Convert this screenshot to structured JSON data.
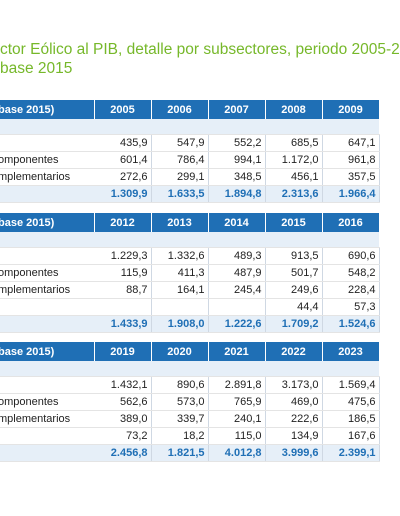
{
  "title": {
    "line1": "ctor Eólico al PIB, detalle por subsectores, periodo 2005-2",
    "line2": "base 2015"
  },
  "blocks": [
    {
      "header_label": "base 2015)",
      "years": [
        "2005",
        "2006",
        "2007",
        "2008",
        "2009"
      ],
      "rows": [
        {
          "label": "",
          "values": [
            "435,9",
            "547,9",
            "552,2",
            "685,5",
            "647,1"
          ]
        },
        {
          "label": "omponentes",
          "values": [
            "601,4",
            "786,4",
            "994,1",
            "1.172,0",
            "961,8"
          ]
        },
        {
          "label": "mplementarios",
          "values": [
            "272,6",
            "299,1",
            "348,5",
            "456,1",
            "357,5"
          ]
        }
      ],
      "totals": [
        "1.309,9",
        "1.633,5",
        "1.894,8",
        "2.313,6",
        "1.966,4"
      ]
    },
    {
      "header_label": "base 2015)",
      "years": [
        "2012",
        "2013",
        "2014",
        "2015",
        "2016"
      ],
      "rows": [
        {
          "label": "",
          "values": [
            "1.229,3",
            "1.332,6",
            "489,3",
            "913,5",
            "690,6"
          ]
        },
        {
          "label": "omponentes",
          "values": [
            "115,9",
            "411,3",
            "487,9",
            "501,7",
            "548,2"
          ]
        },
        {
          "label": "mplementarios",
          "values": [
            "88,7",
            "164,1",
            "245,4",
            "249,6",
            "228,4"
          ]
        },
        {
          "label": "",
          "values": [
            "",
            "",
            "",
            "44,4",
            "57,3"
          ]
        }
      ],
      "totals": [
        "1.433,9",
        "1.908,0",
        "1.222,6",
        "1.709,2",
        "1.524,6"
      ]
    },
    {
      "header_label": "base 2015)",
      "years": [
        "2019",
        "2020",
        "2021",
        "2022",
        "2023"
      ],
      "rows": [
        {
          "label": "",
          "values": [
            "1.432,1",
            "890,6",
            "2.891,8",
            "3.173,0",
            "1.569,4"
          ]
        },
        {
          "label": "omponentes",
          "values": [
            "562,6",
            "573,0",
            "765,9",
            "469,0",
            "475,6"
          ]
        },
        {
          "label": "mplementarios",
          "values": [
            "389,0",
            "339,7",
            "240,1",
            "222,6",
            "186,5"
          ]
        },
        {
          "label": "",
          "values": [
            "73,2",
            "18,2",
            "115,0",
            "134,9",
            "167,6"
          ]
        }
      ],
      "totals": [
        "2.456,8",
        "1.821,5",
        "4.012,8",
        "3.999,6",
        "2.399,1"
      ]
    }
  ]
}
